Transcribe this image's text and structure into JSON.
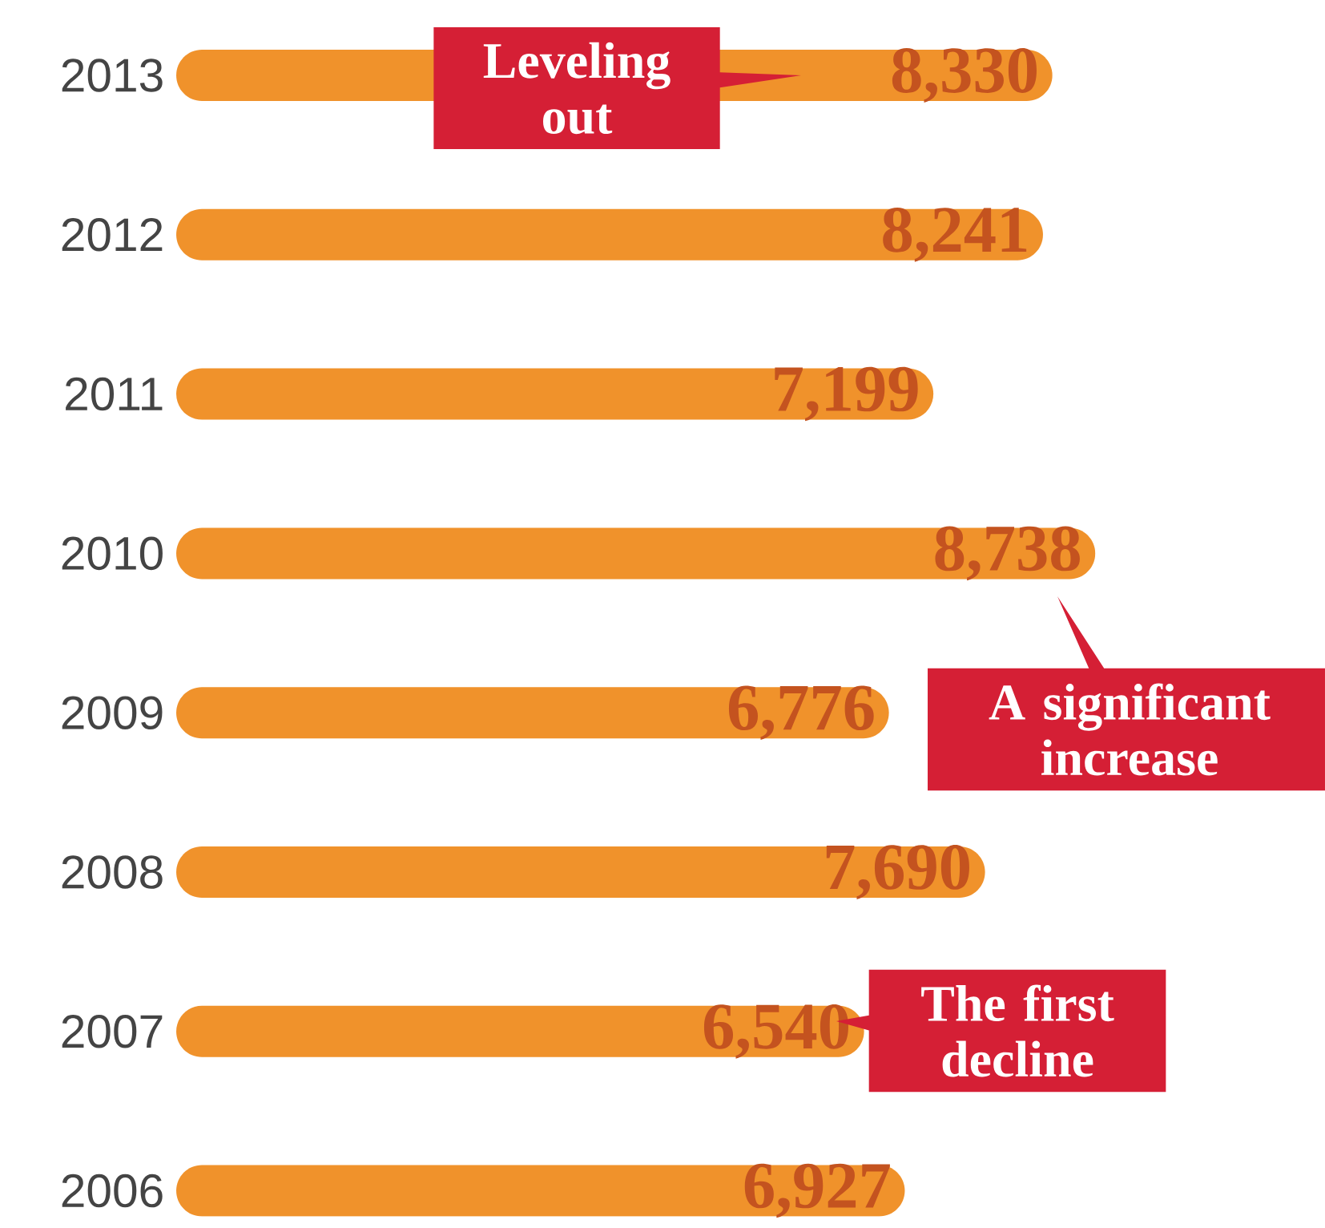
{
  "chart_data": {
    "type": "bar",
    "orientation": "horizontal",
    "categories": [
      "2013",
      "2012",
      "2011",
      "2010",
      "2009",
      "2008",
      "2007",
      "2006"
    ],
    "values": [
      8330,
      8241,
      7199,
      8738,
      6776,
      7690,
      6540,
      6927
    ],
    "value_labels": [
      "8,330",
      "8,241",
      "7,199",
      "8,738",
      "6,776",
      "7,690",
      "6,540",
      "6,927"
    ],
    "color": "#f0922b",
    "tick_labels": "y",
    "grid": false,
    "annotations": [
      "Leveling out",
      "A significant increase",
      "The first decline"
    ]
  }
}
